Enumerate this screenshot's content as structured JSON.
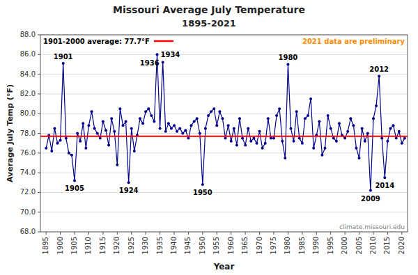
{
  "chart_data": {
    "type": "line",
    "title": "Missouri Average July Temperature",
    "subtitle": "1895-2021",
    "x_label": "Year",
    "y_label": "Average July Temp (°F)",
    "color": "#00008B",
    "marker": "circle",
    "grid": true,
    "xlim": [
      1893,
      2022
    ],
    "xticks": [
      1895,
      1900,
      1905,
      1910,
      1915,
      1920,
      1925,
      1930,
      1935,
      1940,
      1945,
      1950,
      1955,
      1960,
      1965,
      1970,
      1975,
      1980,
      1985,
      1990,
      1995,
      2000,
      2005,
      2010,
      2015,
      2020
    ],
    "ylim": [
      68.0,
      88.0
    ],
    "yticks": [
      {
        "value": 68.0,
        "label": "68.0"
      },
      {
        "value": 70.0,
        "label": "70.0"
      },
      {
        "value": 72.0,
        "label": "72.0"
      },
      {
        "value": 74.0,
        "label": "74.0"
      },
      {
        "value": 76.0,
        "label": "76.0"
      },
      {
        "value": 78.0,
        "label": "78.0"
      },
      {
        "value": 80.0,
        "label": "80.0"
      },
      {
        "value": 82.0,
        "label": "82.0"
      },
      {
        "value": 84.0,
        "label": "84.0"
      },
      {
        "value": 86.0,
        "label": "86.0"
      },
      {
        "value": 88.0,
        "label": "88.0"
      }
    ],
    "reference_line": {
      "value": 77.7,
      "label": "1901-2000 average: 77.7°F",
      "color": "#FF0000"
    },
    "note": {
      "text": "2021 data are preliminary",
      "color": "#FF8C00"
    },
    "source": "climate.missouri.edu",
    "point_labels": [
      {
        "text": "1901",
        "x": 1901
      },
      {
        "text": "1905",
        "x": 1905
      },
      {
        "text": "1924",
        "x": 1924
      },
      {
        "text": "1934",
        "x": 1934
      },
      {
        "text": "1936",
        "x": 1936
      },
      {
        "text": "1950",
        "x": 1950
      },
      {
        "text": "1980",
        "x": 1980
      },
      {
        "text": "2009",
        "x": 2009
      },
      {
        "text": "2012",
        "x": 2012
      },
      {
        "text": "2014",
        "x": 2014
      }
    ],
    "x": [
      1895,
      1896,
      1897,
      1898,
      1899,
      1900,
      1901,
      1902,
      1903,
      1904,
      1905,
      1906,
      1907,
      1908,
      1909,
      1910,
      1911,
      1912,
      1913,
      1914,
      1915,
      1916,
      1917,
      1918,
      1919,
      1920,
      1921,
      1922,
      1923,
      1924,
      1925,
      1926,
      1927,
      1928,
      1929,
      1930,
      1931,
      1932,
      1933,
      1934,
      1935,
      1936,
      1937,
      1938,
      1939,
      1940,
      1941,
      1942,
      1943,
      1944,
      1945,
      1946,
      1947,
      1948,
      1949,
      1950,
      1951,
      1952,
      1953,
      1954,
      1955,
      1956,
      1957,
      1958,
      1959,
      1960,
      1961,
      1962,
      1963,
      1964,
      1965,
      1966,
      1967,
      1968,
      1969,
      1970,
      1971,
      1972,
      1973,
      1974,
      1975,
      1976,
      1977,
      1978,
      1979,
      1980,
      1981,
      1982,
      1983,
      1984,
      1985,
      1986,
      1987,
      1988,
      1989,
      1990,
      1991,
      1992,
      1993,
      1994,
      1995,
      1996,
      1997,
      1998,
      1999,
      2000,
      2001,
      2002,
      2003,
      2004,
      2005,
      2006,
      2007,
      2008,
      2009,
      2010,
      2011,
      2012,
      2013,
      2014,
      2015,
      2016,
      2017,
      2018,
      2019,
      2020,
      2021
    ],
    "values": [
      76.5,
      77.8,
      76.2,
      78.5,
      77.0,
      77.3,
      85.1,
      77.5,
      76.0,
      75.8,
      73.2,
      78.0,
      77.2,
      79.0,
      76.5,
      78.8,
      80.2,
      78.5,
      78.0,
      77.5,
      79.2,
      78.3,
      76.8,
      79.5,
      78.2,
      74.8,
      80.5,
      78.8,
      79.2,
      73.0,
      78.5,
      76.2,
      77.8,
      79.5,
      79.0,
      80.2,
      80.5,
      79.8,
      79.2,
      86.0,
      78.5,
      85.2,
      78.2,
      79.0,
      78.5,
      78.8,
      78.2,
      78.5,
      78.0,
      78.3,
      77.5,
      78.8,
      79.2,
      79.5,
      78.0,
      72.8,
      78.5,
      79.8,
      80.2,
      80.5,
      78.8,
      80.2,
      79.5,
      77.5,
      78.8,
      77.2,
      78.5,
      76.8,
      79.5,
      77.5,
      76.8,
      78.5,
      77.2,
      77.5,
      77.0,
      78.2,
      76.5,
      77.0,
      79.5,
      77.5,
      77.5,
      79.8,
      80.5,
      77.2,
      75.5,
      85.0,
      78.5,
      77.2,
      80.2,
      77.5,
      77.0,
      79.5,
      79.8,
      81.5,
      76.5,
      77.8,
      79.2,
      75.8,
      76.5,
      79.8,
      78.5,
      77.5,
      77.2,
      79.0,
      77.8,
      77.5,
      78.2,
      79.5,
      78.8,
      76.5,
      75.5,
      78.5,
      77.2,
      78.0,
      72.2,
      79.5,
      80.8,
      83.8,
      77.5,
      73.5,
      77.2,
      78.5,
      78.8,
      77.5,
      78.2,
      77.0,
      77.5
    ]
  }
}
